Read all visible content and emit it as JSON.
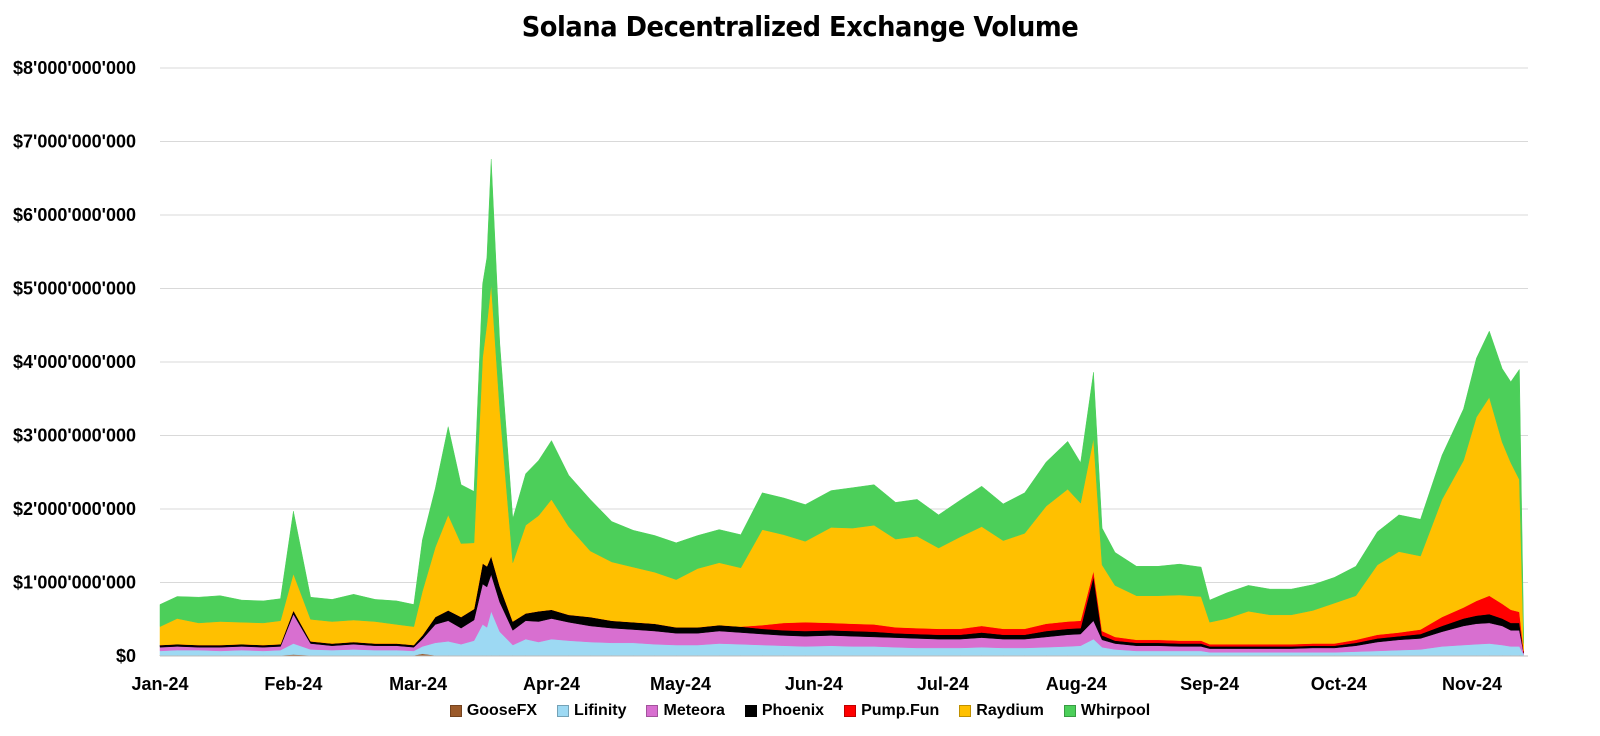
{
  "chart_data": {
    "type": "area",
    "stacked": true,
    "title": "Solana Decentralized Exchange Volume",
    "xlabel": "",
    "ylabel": "",
    "y_ticks": [
      "$0",
      "$1'000'000'000",
      "$2'000'000'000",
      "$3'000'000'000",
      "$4'000'000'000",
      "$5'000'000'000",
      "$6'000'000'000",
      "$7'000'000'000",
      "$8'000'000'000"
    ],
    "ylim": [
      0,
      8000000000
    ],
    "x_ticks": [
      "Jan-24",
      "Feb-24",
      "Mar-24",
      "Apr-24",
      "May-24",
      "Jun-24",
      "Jul-24",
      "Aug-24",
      "Sep-24",
      "Oct-24",
      "Nov-24"
    ],
    "x_tick_dates": [
      "2024-01-01",
      "2024-02-01",
      "2024-03-01",
      "2024-04-01",
      "2024-05-01",
      "2024-06-01",
      "2024-07-01",
      "2024-08-01",
      "2024-09-01",
      "2024-10-01",
      "2024-11-01"
    ],
    "xlim": [
      "2024-01-01",
      "2024-11-14"
    ],
    "grid": true,
    "legend_position": "bottom",
    "x": [
      "2024-01-01",
      "2024-01-05",
      "2024-01-10",
      "2024-01-15",
      "2024-01-20",
      "2024-01-25",
      "2024-01-29",
      "2024-02-01",
      "2024-02-05",
      "2024-02-10",
      "2024-02-15",
      "2024-02-20",
      "2024-02-25",
      "2024-02-29",
      "2024-03-02",
      "2024-03-05",
      "2024-03-08",
      "2024-03-11",
      "2024-03-14",
      "2024-03-16",
      "2024-03-17",
      "2024-03-18",
      "2024-03-20",
      "2024-03-23",
      "2024-03-26",
      "2024-03-29",
      "2024-04-01",
      "2024-04-05",
      "2024-04-10",
      "2024-04-15",
      "2024-04-20",
      "2024-04-25",
      "2024-04-30",
      "2024-05-05",
      "2024-05-10",
      "2024-05-15",
      "2024-05-20",
      "2024-05-25",
      "2024-05-30",
      "2024-06-05",
      "2024-06-10",
      "2024-06-15",
      "2024-06-20",
      "2024-06-25",
      "2024-06-30",
      "2024-07-05",
      "2024-07-10",
      "2024-07-15",
      "2024-07-20",
      "2024-07-25",
      "2024-07-30",
      "2024-08-02",
      "2024-08-05",
      "2024-08-07",
      "2024-08-10",
      "2024-08-15",
      "2024-08-20",
      "2024-08-25",
      "2024-08-30",
      "2024-09-01",
      "2024-09-05",
      "2024-09-10",
      "2024-09-15",
      "2024-09-20",
      "2024-09-25",
      "2024-09-30",
      "2024-10-05",
      "2024-10-10",
      "2024-10-15",
      "2024-10-20",
      "2024-10-25",
      "2024-10-30",
      "2024-11-02",
      "2024-11-05",
      "2024-11-08",
      "2024-11-10",
      "2024-11-12",
      "2024-11-13"
    ],
    "series": [
      {
        "name": "GooseFX",
        "color": "#9B5A2A",
        "values": [
          0.01,
          0.01,
          0.01,
          0.01,
          0.01,
          0.01,
          0.01,
          0.02,
          0.01,
          0.01,
          0.01,
          0.01,
          0.01,
          0.01,
          0.03,
          0.01,
          0.01,
          0.01,
          0.01,
          0.01,
          0.01,
          0.01,
          0.01,
          0.01,
          0.01,
          0.01,
          0.01,
          0.01,
          0.01,
          0.01,
          0.01,
          0.01,
          0.01,
          0.01,
          0.01,
          0.01,
          0.01,
          0.01,
          0.01,
          0.01,
          0.01,
          0.01,
          0.01,
          0.01,
          0.01,
          0.01,
          0.01,
          0.01,
          0.01,
          0.01,
          0.01,
          0.01,
          0.01,
          0.01,
          0.01,
          0.01,
          0.01,
          0.01,
          0.01,
          0.01,
          0.01,
          0.01,
          0.01,
          0.01,
          0.01,
          0.01,
          0.01,
          0.01,
          0.01,
          0.01,
          0.01,
          0.01,
          0.01,
          0.01,
          0.01,
          0.01,
          0.01,
          0.0
        ]
      },
      {
        "name": "Lifinity",
        "color": "#9DD9F3",
        "values": [
          0.06,
          0.07,
          0.07,
          0.06,
          0.07,
          0.06,
          0.07,
          0.15,
          0.08,
          0.07,
          0.08,
          0.07,
          0.07,
          0.06,
          0.1,
          0.17,
          0.19,
          0.15,
          0.2,
          0.42,
          0.38,
          0.6,
          0.32,
          0.14,
          0.22,
          0.18,
          0.22,
          0.2,
          0.18,
          0.17,
          0.17,
          0.15,
          0.14,
          0.14,
          0.16,
          0.15,
          0.14,
          0.13,
          0.12,
          0.13,
          0.12,
          0.12,
          0.11,
          0.1,
          0.1,
          0.1,
          0.11,
          0.1,
          0.1,
          0.11,
          0.12,
          0.13,
          0.22,
          0.11,
          0.08,
          0.06,
          0.06,
          0.06,
          0.06,
          0.04,
          0.04,
          0.04,
          0.04,
          0.04,
          0.04,
          0.04,
          0.05,
          0.06,
          0.07,
          0.08,
          0.12,
          0.14,
          0.15,
          0.16,
          0.14,
          0.12,
          0.12,
          0.02
        ]
      },
      {
        "name": "Meteora",
        "color": "#D86FD0",
        "values": [
          0.05,
          0.05,
          0.04,
          0.05,
          0.05,
          0.05,
          0.05,
          0.4,
          0.08,
          0.06,
          0.07,
          0.06,
          0.06,
          0.05,
          0.1,
          0.25,
          0.28,
          0.22,
          0.28,
          0.55,
          0.55,
          0.5,
          0.4,
          0.2,
          0.25,
          0.28,
          0.28,
          0.25,
          0.22,
          0.2,
          0.18,
          0.18,
          0.16,
          0.16,
          0.17,
          0.16,
          0.15,
          0.14,
          0.14,
          0.14,
          0.14,
          0.13,
          0.13,
          0.13,
          0.12,
          0.12,
          0.13,
          0.12,
          0.12,
          0.14,
          0.16,
          0.16,
          0.25,
          0.1,
          0.08,
          0.07,
          0.07,
          0.06,
          0.06,
          0.05,
          0.05,
          0.05,
          0.05,
          0.05,
          0.06,
          0.06,
          0.08,
          0.12,
          0.14,
          0.15,
          0.2,
          0.26,
          0.28,
          0.28,
          0.26,
          0.22,
          0.22,
          0.02
        ]
      },
      {
        "name": "Phoenix",
        "color": "#000000",
        "values": [
          0.03,
          0.03,
          0.03,
          0.03,
          0.03,
          0.03,
          0.03,
          0.05,
          0.03,
          0.03,
          0.03,
          0.03,
          0.03,
          0.03,
          0.05,
          0.1,
          0.14,
          0.15,
          0.15,
          0.28,
          0.28,
          0.25,
          0.22,
          0.12,
          0.1,
          0.14,
          0.12,
          0.1,
          0.12,
          0.1,
          0.1,
          0.1,
          0.08,
          0.08,
          0.08,
          0.08,
          0.07,
          0.07,
          0.07,
          0.07,
          0.07,
          0.07,
          0.06,
          0.06,
          0.06,
          0.06,
          0.07,
          0.06,
          0.06,
          0.08,
          0.08,
          0.08,
          0.6,
          0.06,
          0.04,
          0.04,
          0.04,
          0.04,
          0.04,
          0.03,
          0.03,
          0.03,
          0.03,
          0.03,
          0.03,
          0.03,
          0.04,
          0.05,
          0.05,
          0.06,
          0.08,
          0.1,
          0.11,
          0.12,
          0.1,
          0.1,
          0.1,
          0.01
        ]
      },
      {
        "name": "Pump.Fun",
        "color": "#FF0000",
        "values": [
          0,
          0,
          0,
          0,
          0,
          0,
          0,
          0,
          0,
          0,
          0,
          0,
          0,
          0,
          0,
          0,
          0,
          0,
          0,
          0,
          0,
          0,
          0,
          0,
          0,
          0,
          0,
          0,
          0,
          0,
          0,
          0,
          0,
          0,
          0,
          0,
          0.05,
          0.1,
          0.12,
          0.1,
          0.1,
          0.1,
          0.08,
          0.08,
          0.08,
          0.08,
          0.09,
          0.08,
          0.08,
          0.1,
          0.1,
          0.1,
          0.08,
          0.06,
          0.05,
          0.04,
          0.04,
          0.04,
          0.04,
          0.03,
          0.03,
          0.03,
          0.03,
          0.03,
          0.03,
          0.03,
          0.04,
          0.05,
          0.05,
          0.06,
          0.12,
          0.15,
          0.2,
          0.25,
          0.2,
          0.18,
          0.15,
          0.02
        ]
      },
      {
        "name": "Raydium",
        "color": "#FFC000",
        "values": [
          0.25,
          0.35,
          0.3,
          0.32,
          0.3,
          0.3,
          0.32,
          0.5,
          0.3,
          0.3,
          0.3,
          0.3,
          0.26,
          0.25,
          0.6,
          0.95,
          1.3,
          1.0,
          0.9,
          2.8,
          3.3,
          3.7,
          2.4,
          0.8,
          1.2,
          1.3,
          1.5,
          1.2,
          0.9,
          0.8,
          0.75,
          0.7,
          0.65,
          0.8,
          0.85,
          0.8,
          1.3,
          1.2,
          1.1,
          1.3,
          1.3,
          1.35,
          1.2,
          1.25,
          1.1,
          1.25,
          1.35,
          1.2,
          1.3,
          1.6,
          1.8,
          1.6,
          1.8,
          0.9,
          0.7,
          0.6,
          0.6,
          0.62,
          0.6,
          0.3,
          0.35,
          0.45,
          0.4,
          0.4,
          0.45,
          0.55,
          0.6,
          0.95,
          1.1,
          1.0,
          1.6,
          2.0,
          2.5,
          2.7,
          2.2,
          2.0,
          1.8,
          0.1
        ]
      },
      {
        "name": "Whirpool",
        "color": "#4CCF5A",
        "values": [
          0.3,
          0.3,
          0.35,
          0.35,
          0.3,
          0.3,
          0.3,
          0.85,
          0.3,
          0.3,
          0.35,
          0.3,
          0.32,
          0.3,
          0.7,
          0.8,
          1.2,
          0.8,
          0.7,
          1.0,
          0.9,
          1.7,
          0.9,
          0.6,
          0.7,
          0.75,
          0.8,
          0.7,
          0.7,
          0.55,
          0.5,
          0.5,
          0.5,
          0.45,
          0.45,
          0.45,
          0.5,
          0.5,
          0.5,
          0.5,
          0.55,
          0.55,
          0.5,
          0.5,
          0.45,
          0.5,
          0.55,
          0.5,
          0.55,
          0.6,
          0.65,
          0.55,
          0.9,
          0.5,
          0.45,
          0.4,
          0.4,
          0.42,
          0.4,
          0.3,
          0.35,
          0.35,
          0.35,
          0.35,
          0.35,
          0.35,
          0.4,
          0.45,
          0.5,
          0.5,
          0.6,
          0.7,
          0.8,
          0.9,
          1.0,
          1.1,
          1.5,
          0.1
        ]
      }
    ],
    "values_unit": "billions of USD"
  }
}
